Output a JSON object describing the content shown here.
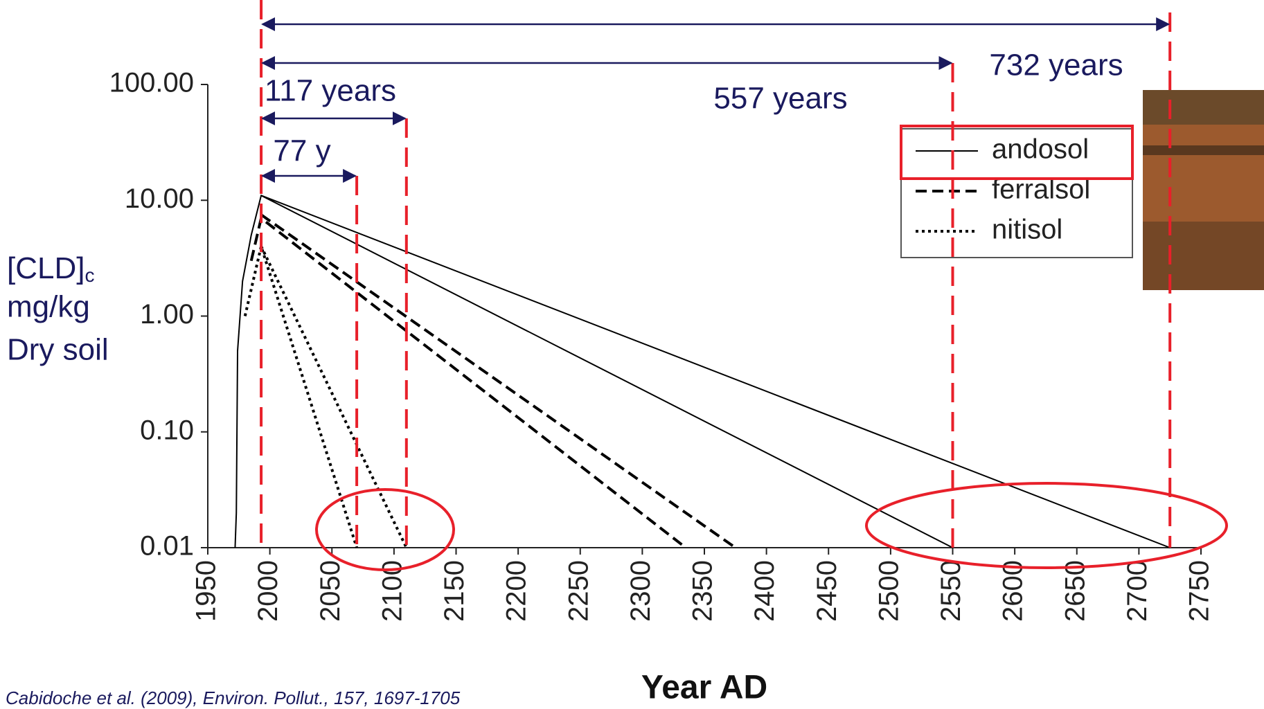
{
  "chart_data": {
    "type": "line",
    "log_y": true,
    "xlabel": "Year AD",
    "ylabel": {
      "main": "[CLD]",
      "sub": "c",
      "lines": [
        "mg/kg",
        "Dry soil"
      ]
    },
    "xlim": [
      1950,
      2750
    ],
    "xticks": [
      1950,
      2000,
      2050,
      2100,
      2150,
      2200,
      2250,
      2300,
      2350,
      2400,
      2450,
      2500,
      2550,
      2600,
      2650,
      2700,
      2750
    ],
    "ylim": [
      0.01,
      100
    ],
    "yticks": [
      {
        "value": 0.01,
        "label": "0.01"
      },
      {
        "value": 0.1,
        "label": "0.10"
      },
      {
        "value": 1,
        "label": "1.00"
      },
      {
        "value": 10,
        "label": "10.00"
      },
      {
        "value": 100,
        "label": "100.00"
      }
    ],
    "series": [
      {
        "name": "andosol",
        "color": "#000000",
        "style": "solid",
        "curves": [
          {
            "x": [
              1972,
              1973,
              1974,
              1978,
              1985,
              1993,
              2725
            ],
            "values": [
              0.01,
              0.02,
              0.5,
              2,
              5,
              11,
              0.01
            ]
          },
          {
            "x": [
              1993,
              2550
            ],
            "values": [
              11,
              0.01
            ]
          }
        ]
      },
      {
        "name": "ferralsol",
        "color": "#000000",
        "style": "dashed",
        "curves": [
          {
            "x": [
              1985,
              1993,
              2335
            ],
            "values": [
              3,
              7,
              0.01
            ]
          },
          {
            "x": [
              1993,
              2375
            ],
            "values": [
              7.5,
              0.01
            ]
          }
        ]
      },
      {
        "name": "nitisol",
        "color": "#000000",
        "style": "dotted",
        "curves": [
          {
            "x": [
              1980,
              1993,
              2070
            ],
            "values": [
              1,
              4,
              0.01
            ]
          },
          {
            "x": [
              1993,
              2110
            ],
            "values": [
              4,
              0.01
            ]
          }
        ]
      }
    ],
    "spans": [
      {
        "label": "732 years",
        "from": 1993,
        "to": 2725
      },
      {
        "label": "557 years",
        "from": 1993,
        "to": 2550
      },
      {
        "label": "117 years",
        "from": 1993,
        "to": 2110
      },
      {
        "label": "77 y",
        "from": 1993,
        "to": 2070
      }
    ],
    "citation": "Cabidoche et al. (2009), Environ. Pollut., 157, 1697-1705"
  }
}
